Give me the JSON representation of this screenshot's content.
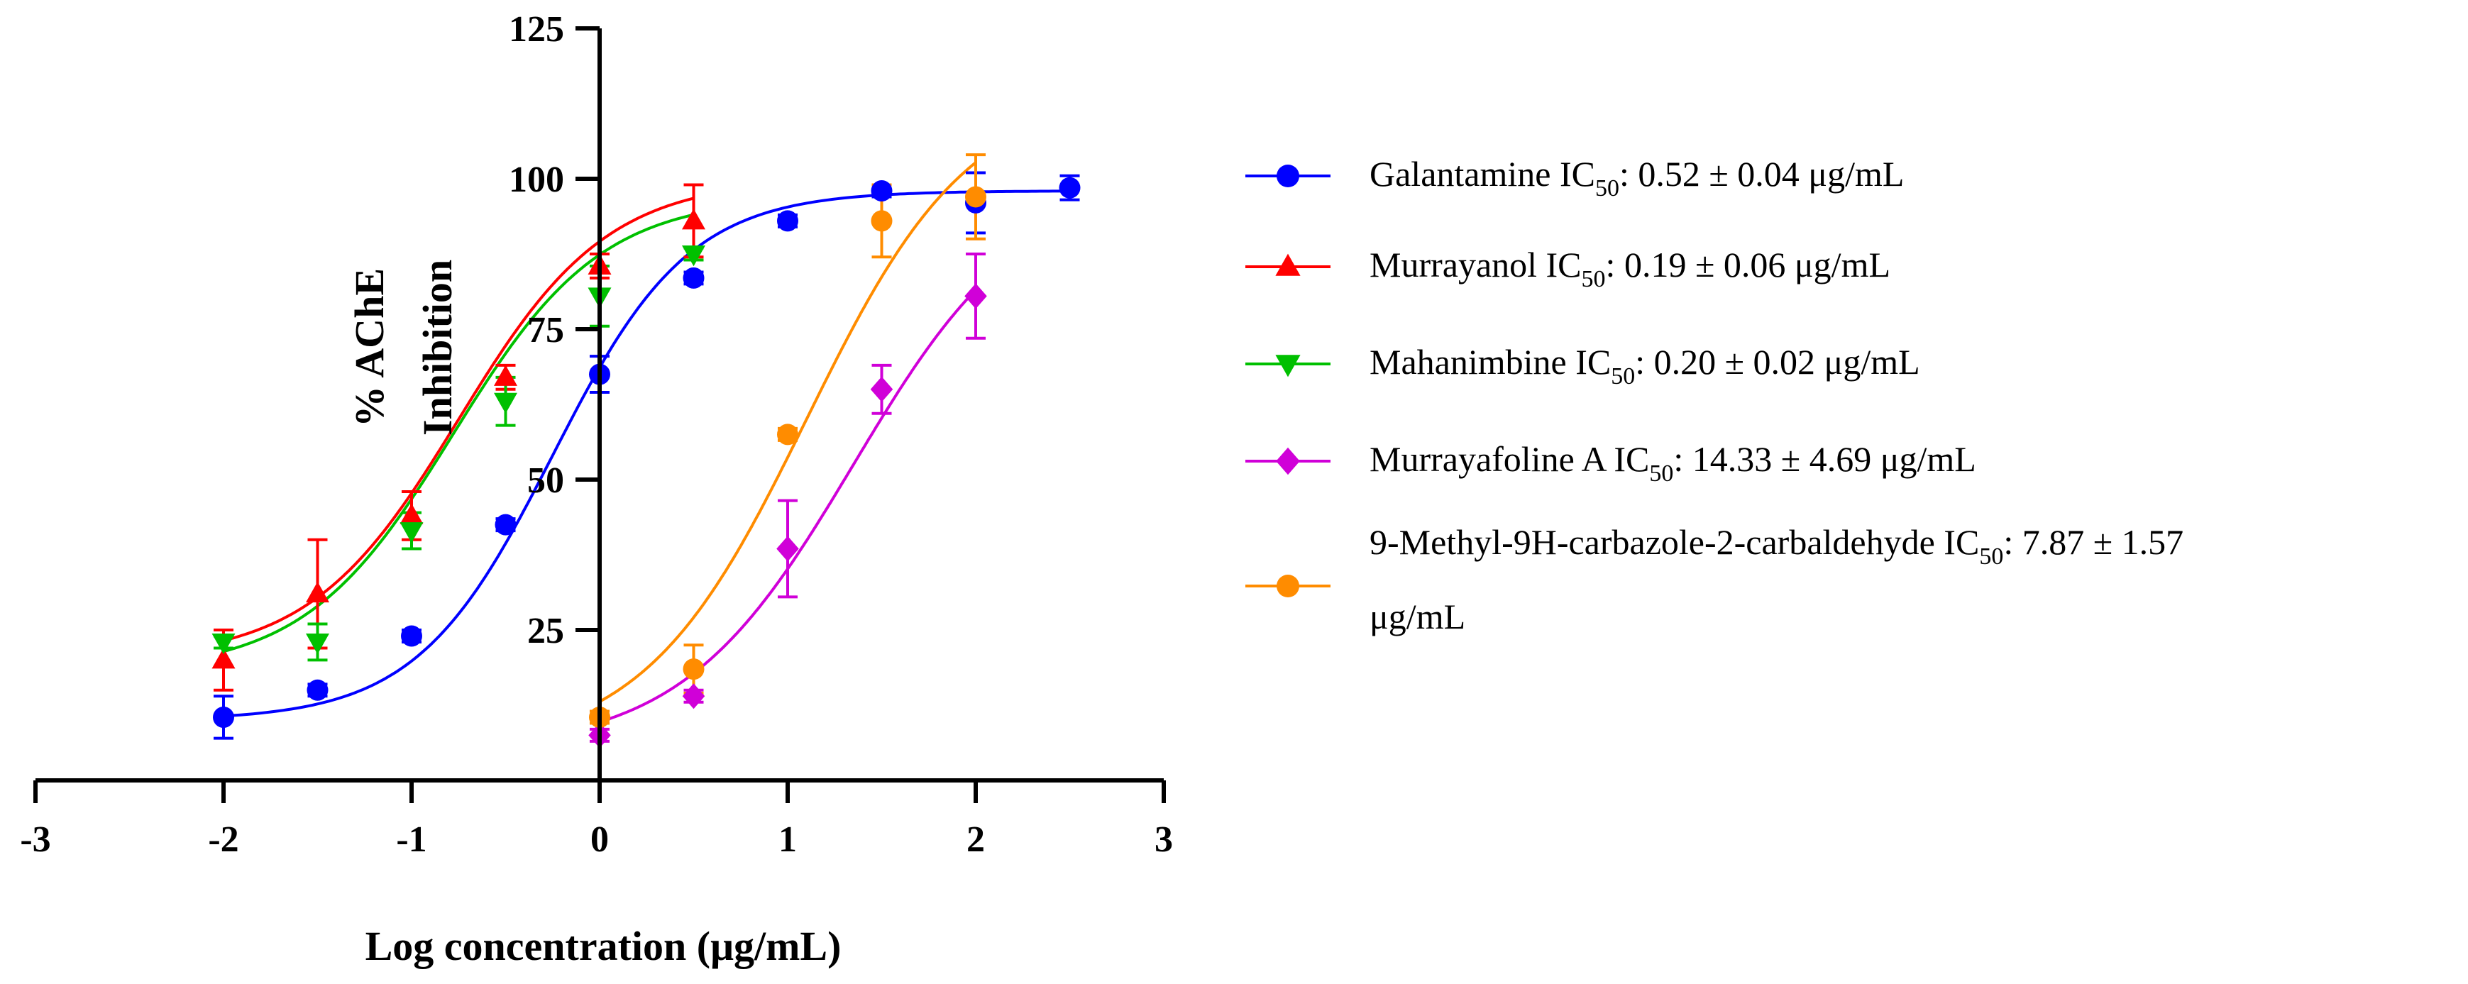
{
  "chart_data": {
    "type": "line",
    "x_axis": {
      "label": "Log concentration (μg/mL)",
      "range": [
        -3,
        3
      ],
      "ticks": [
        -3,
        -2,
        -1,
        0,
        1,
        2,
        3
      ]
    },
    "y_axis": {
      "label_line1": "% AChE",
      "label_line2": "Inhibition",
      "range": [
        0,
        125
      ],
      "ticks": [
        25,
        50,
        75,
        100,
        125
      ]
    },
    "series": [
      {
        "name": "Galantamine",
        "legend": {
          "prefix": "Galantamine IC",
          "sub": "50",
          "suffix": ": 0.52 ± 0.04 μg/mL",
          "line2": ""
        },
        "color": "#0000ff",
        "marker": "circle",
        "x": [
          -2,
          -1.5,
          -1,
          -0.5,
          0,
          0.5,
          1,
          1.5,
          2,
          2.5
        ],
        "y": [
          10.5,
          15,
          24,
          42.5,
          67.5,
          83.5,
          93,
          98,
          96,
          98.5
        ],
        "err": [
          3.5,
          1,
          1,
          1,
          3,
          1,
          1,
          1,
          5,
          2
        ],
        "fit": {
          "bottom": 10,
          "top": 98,
          "logIC50": -0.25,
          "hill": 1.2
        }
      },
      {
        "name": "Murrayanol",
        "legend": {
          "prefix": "Murrayanol IC",
          "sub": "50",
          "suffix": ": 0.19 ± 0.06 μg/mL",
          "line2": ""
        },
        "color": "#ff0000",
        "marker": "triangle-up",
        "x": [
          -2,
          -1.5,
          -1,
          -0.5,
          0,
          0.5
        ],
        "y": [
          20,
          31,
          44,
          67,
          85.5,
          93
        ],
        "err": [
          5,
          9,
          4,
          2,
          2,
          6
        ],
        "fit": {
          "bottom": 20,
          "top": 100,
          "logIC50": -0.75,
          "hill": 1.1
        }
      },
      {
        "name": "Mahanimbine",
        "legend": {
          "prefix": "Mahanimbine IC",
          "sub": "50",
          "suffix": ": 0.20 ± 0.02 μg/mL",
          "line2": ""
        },
        "color": "#00c000",
        "marker": "triangle-down",
        "x": [
          -2,
          -1.5,
          -1,
          -0.5,
          0,
          0.5
        ],
        "y": [
          23,
          23,
          41.5,
          63,
          80.5,
          87.5
        ],
        "err": [
          1,
          3,
          3,
          4,
          5,
          1
        ],
        "fit": {
          "bottom": 18,
          "top": 97,
          "logIC50": -0.78,
          "hill": 1.1
        }
      },
      {
        "name": "Murrayafoline A",
        "legend": {
          "prefix": "Murrayafoline A IC",
          "sub": "50",
          "suffix": ": 14.33 ± 4.69 μg/mL",
          "line2": ""
        },
        "color": "#d000d8",
        "marker": "diamond",
        "x": [
          0,
          0.5,
          1,
          1.5,
          2
        ],
        "y": [
          7.5,
          14,
          38.5,
          65,
          80.5
        ],
        "err": [
          1,
          1,
          8,
          4,
          7
        ],
        "fit": {
          "bottom": 5,
          "top": 100,
          "logIC50": 1.35,
          "hill": 0.95
        }
      },
      {
        "name": "9-Methyl-9H-carbazole-2-carbaldehyde",
        "legend": {
          "prefix": "9-Methyl-9H-carbazole-2-carbaldehyde IC",
          "sub": "50",
          "suffix": ": 7.87 ± 1.57",
          "line2": "μg/mL"
        },
        "color": "#ff8c00",
        "marker": "circle",
        "x": [
          0,
          0.5,
          1,
          1.5,
          2
        ],
        "y": [
          10.5,
          18.5,
          57.5,
          93,
          97
        ],
        "err": [
          1,
          4,
          1,
          6,
          7
        ],
        "fit": {
          "bottom": 5,
          "top": 115,
          "logIC50": 1.1,
          "hill": 1.0,
          "xmax": 2
        }
      }
    ]
  }
}
